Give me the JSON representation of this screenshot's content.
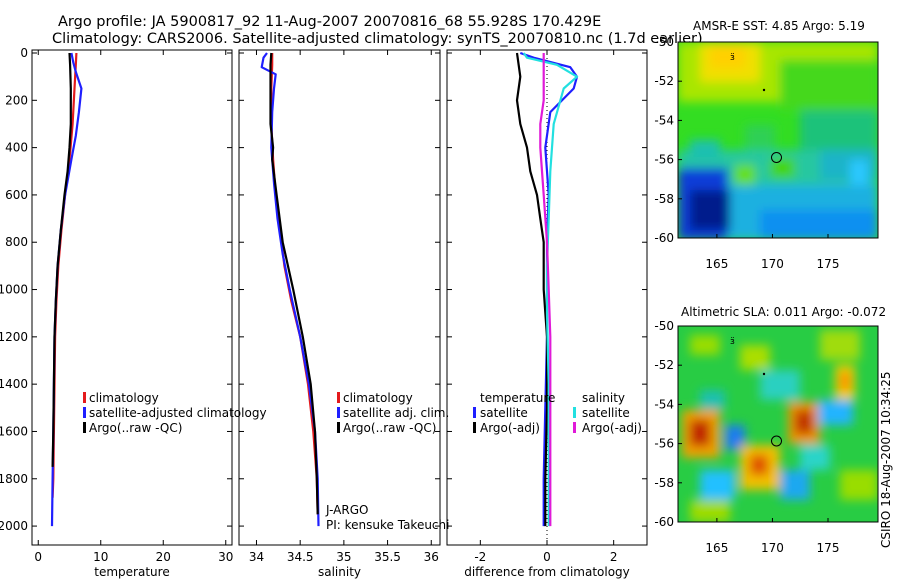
{
  "header": {
    "line1": "Argo profile: JA 5900817_92 11-Aug-2007 20070816_68 55.928S 170.429E",
    "line2": "Climatology: CARS2006. Satellite-adjusted climatology: synTS_20070810.nc (1.7d earlier)"
  },
  "side_label": "CSIRO 18-Aug-2007 10:34:25",
  "colors": {
    "clim": "#e41a1c",
    "sat": "#1f1fff",
    "argo": "#000000",
    "sal_sat": "#22e0e0",
    "sal_argo": "#e01ad8"
  },
  "chart_data": [
    {
      "type": "line",
      "id": "temperature",
      "xlabel": "temperature",
      "ylabel": "",
      "xlim": [
        -1,
        31
      ],
      "ylim": [
        0,
        2080
      ],
      "xticks": [
        0,
        10,
        20,
        30
      ],
      "yticks": [
        0,
        200,
        400,
        600,
        800,
        1000,
        1200,
        1400,
        1600,
        1800,
        2000
      ],
      "legend": [
        "climatology",
        "satellite-adjusted climatology",
        "Argo(..raw -QC)"
      ],
      "series": [
        {
          "name": "climatology",
          "color": "clim",
          "x": [
            6.1,
            6.0,
            5.8,
            5.5,
            5.0,
            4.3,
            3.7,
            3.2,
            2.9,
            2.7,
            2.6,
            2.5,
            2.4,
            2.3
          ],
          "depth": [
            0,
            50,
            150,
            300,
            450,
            600,
            750,
            900,
            1050,
            1200,
            1400,
            1600,
            1800,
            1880
          ]
        },
        {
          "name": "satellite-adjusted climatology",
          "color": "sat",
          "x": [
            5.3,
            5.6,
            6.0,
            6.9,
            6.5,
            6.0,
            5.3,
            4.3,
            3.6,
            3.1,
            2.8,
            2.6,
            2.5,
            2.4,
            2.3,
            2.2
          ],
          "depth": [
            0,
            40,
            80,
            150,
            250,
            350,
            450,
            600,
            750,
            900,
            1050,
            1200,
            1400,
            1600,
            1800,
            2000
          ]
        },
        {
          "name": "Argo(..raw -QC)",
          "color": "argo",
          "x": [
            5.0,
            5.1,
            5.2,
            5.2,
            5.0,
            4.7,
            4.2,
            3.6,
            3.1,
            2.8,
            2.6,
            2.5,
            2.4,
            2.3
          ],
          "depth": [
            0,
            50,
            150,
            300,
            400,
            500,
            600,
            750,
            900,
            1050,
            1200,
            1400,
            1600,
            1750
          ]
        }
      ]
    },
    {
      "type": "line",
      "id": "salinity",
      "xlabel": "salinity",
      "xlim": [
        33.8,
        36.1
      ],
      "ylim": [
        0,
        2080
      ],
      "xticks": [
        34,
        34.5,
        35,
        35.5,
        36
      ],
      "legend": [
        "climatology",
        "satellite adj. clim.",
        "Argo(..raw -QC)"
      ],
      "annotation": [
        "J-ARGO",
        "PI: kensuke Takeuchi"
      ],
      "series": [
        {
          "name": "climatology",
          "color": "clim",
          "x": [
            34.18,
            34.18,
            34.17,
            34.17,
            34.19,
            34.22,
            34.27,
            34.32,
            34.4,
            34.5,
            34.59,
            34.65,
            34.69,
            34.7
          ],
          "depth": [
            0,
            50,
            150,
            300,
            450,
            600,
            750,
            900,
            1050,
            1200,
            1400,
            1600,
            1800,
            1950
          ]
        },
        {
          "name": "satellite adj. clim.",
          "color": "sat",
          "x": [
            34.12,
            34.08,
            34.06,
            34.22,
            34.2,
            34.18,
            34.17,
            34.2,
            34.24,
            34.3,
            34.38,
            34.5,
            34.6,
            34.67,
            34.7,
            34.71
          ],
          "depth": [
            0,
            20,
            60,
            90,
            150,
            250,
            400,
            550,
            700,
            850,
            1000,
            1200,
            1400,
            1600,
            1800,
            2000
          ]
        },
        {
          "name": "Argo(..raw -QC)",
          "color": "argo",
          "x": [
            34.17,
            34.16,
            34.16,
            34.16,
            34.19,
            34.18,
            34.23,
            34.3,
            34.42,
            34.53,
            34.62,
            34.67,
            34.69,
            34.7
          ],
          "depth": [
            0,
            50,
            150,
            300,
            400,
            450,
            600,
            800,
            1000,
            1200,
            1400,
            1600,
            1800,
            1950
          ]
        }
      ]
    },
    {
      "type": "line",
      "id": "difference",
      "xlabel": "difference from climatology",
      "xlim": [
        -3.0,
        3.0
      ],
      "ylim": [
        0,
        2080
      ],
      "xticks": [
        -2,
        0,
        2
      ],
      "legend_left": {
        "title": "temperature",
        "items": [
          "satellite",
          "Argo(-adj)"
        ]
      },
      "legend_right": {
        "title": "salinity",
        "items": [
          "satellite",
          "Argo(-adj)"
        ]
      },
      "series": [
        {
          "name": "temperature satellite",
          "color": "sat",
          "x": [
            -0.8,
            -0.4,
            0.7,
            0.9,
            0.8,
            0.1,
            -0.05,
            0.05,
            0.0,
            0.0,
            0.0,
            -0.05,
            -0.1,
            -0.1
          ],
          "depth": [
            0,
            20,
            60,
            100,
            150,
            250,
            400,
            600,
            800,
            1000,
            1200,
            1500,
            1800,
            2000
          ]
        },
        {
          "name": "temperature Argo(-adj)",
          "color": "argo",
          "x": [
            -0.9,
            -0.8,
            -0.9,
            -0.8,
            -0.6,
            -0.5,
            -0.3,
            -0.2,
            -0.1,
            -0.1,
            0.0,
            0.0,
            -0.05,
            -0.05
          ],
          "depth": [
            0,
            100,
            200,
            300,
            400,
            500,
            600,
            700,
            800,
            1000,
            1200,
            1500,
            1800,
            2000
          ]
        },
        {
          "name": "salinity satellite",
          "color": "sal_sat",
          "x": [
            -0.7,
            -0.6,
            0.3,
            0.9,
            0.5,
            0.2,
            0.1,
            0.05,
            0.0,
            0.0,
            0.05,
            0.05,
            0.05,
            0.05
          ],
          "depth": [
            0,
            20,
            50,
            100,
            150,
            300,
            500,
            700,
            900,
            1100,
            1400,
            1700,
            1900,
            2000
          ]
        },
        {
          "name": "salinity Argo(-adj)",
          "color": "sal_argo",
          "x": [
            -0.1,
            -0.1,
            -0.1,
            -0.2,
            -0.2,
            -0.1,
            0.0,
            0.05,
            0.1,
            0.1,
            0.1,
            0.1,
            0.1
          ],
          "depth": [
            0,
            100,
            200,
            300,
            400,
            600,
            800,
            1000,
            1200,
            1400,
            1600,
            1800,
            2000
          ]
        }
      ]
    },
    {
      "type": "heatmap",
      "id": "sst_map",
      "title": "AMSR-E SST: 4.85  Argo: 5.19",
      "xlim": [
        161.5,
        179.5
      ],
      "ylim": [
        -60,
        -50
      ],
      "xticks": [
        165,
        170,
        175
      ],
      "yticks": [
        -50,
        -52,
        -54,
        -56,
        -58,
        -60
      ],
      "argo_position": [
        170.43,
        -55.93
      ]
    },
    {
      "type": "heatmap",
      "id": "sla_map",
      "title": "Altimetric SLA: 0.011  Argo: -0.072",
      "xlim": [
        161.5,
        179.5
      ],
      "ylim": [
        -60,
        -50
      ],
      "xticks": [
        165,
        170,
        175
      ],
      "yticks": [
        -50,
        -52,
        -54,
        -56,
        -58,
        -60
      ],
      "argo_position": [
        170.43,
        -55.93
      ]
    }
  ]
}
